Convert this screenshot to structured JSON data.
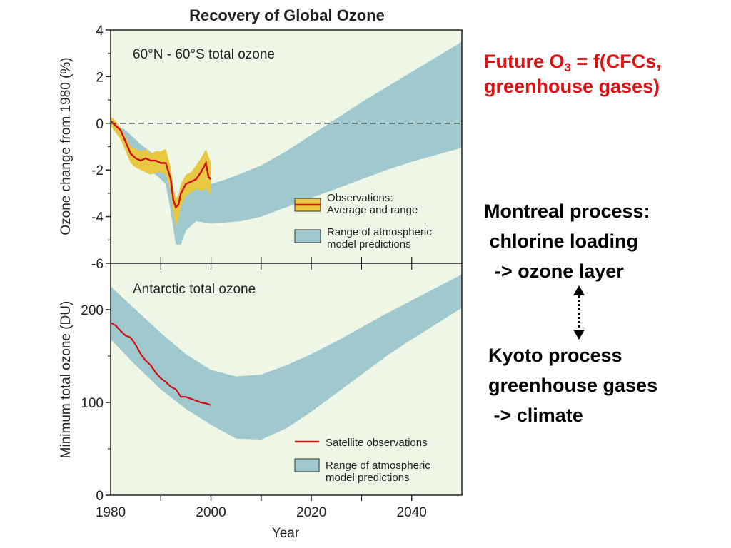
{
  "chart_data": [
    {
      "type": "area",
      "title": "Recovery of Global Ozone",
      "panel_label": "60°N - 60°S total ozone",
      "ylabel": "Ozone change from 1980 (%)",
      "xlim": [
        1980,
        2050
      ],
      "ylim": [
        -6,
        4
      ],
      "yticks": [
        "4",
        "2",
        "0",
        "-2",
        "-4",
        "-6"
      ],
      "reference_line_y": 0,
      "legend_position": "bottom-right",
      "legend": [
        {
          "label": "Observations:\nAverage and range",
          "color": "#e8c840"
        },
        {
          "label": "Range of atmospheric\nmodel predictions",
          "color": "#9fc8cf"
        }
      ],
      "series": [
        {
          "name": "Range of atmospheric model predictions",
          "kind": "band",
          "x": [
            1980,
            1983,
            1986,
            1989,
            1991,
            1992,
            1993,
            1994,
            1995,
            1997,
            2000,
            2003,
            2006,
            2010,
            2015,
            2020,
            2025,
            2030,
            2035,
            2040,
            2045,
            2050
          ],
          "upper": [
            0.1,
            -0.3,
            -0.9,
            -1.4,
            -1.9,
            -2.6,
            -3.4,
            -3.3,
            -3.0,
            -2.8,
            -2.6,
            -2.4,
            -2.15,
            -1.8,
            -1.2,
            -0.5,
            0.2,
            0.9,
            1.55,
            2.2,
            2.85,
            3.5
          ],
          "lower": [
            -0.1,
            -0.8,
            -1.9,
            -2.2,
            -2.6,
            -3.8,
            -5.2,
            -5.2,
            -4.6,
            -4.2,
            -4.3,
            -4.25,
            -4.2,
            -4.0,
            -3.6,
            -3.2,
            -2.8,
            -2.4,
            -2.0,
            -1.65,
            -1.35,
            -1.05
          ]
        },
        {
          "name": "Observations: Average and range",
          "kind": "band",
          "x": [
            1980,
            1981,
            1982,
            1983,
            1984,
            1985,
            1986,
            1987,
            1988,
            1989,
            1990,
            1991,
            1992,
            1992.5,
            1993,
            1993.5,
            1994,
            1995,
            1996,
            1997,
            1998,
            1999,
            2000
          ],
          "upper": [
            0.3,
            0.1,
            -0.2,
            -0.6,
            -1.0,
            -1.1,
            -1.2,
            -1.1,
            -1.3,
            -1.2,
            -1.2,
            -1.1,
            -1.9,
            -2.8,
            -3.2,
            -3.1,
            -2.6,
            -2.2,
            -2.1,
            -1.8,
            -1.5,
            -1.1,
            -1.7
          ],
          "lower": [
            -0.1,
            -0.4,
            -0.7,
            -1.2,
            -1.7,
            -1.9,
            -2.0,
            -2.1,
            -2.2,
            -2.1,
            -2.1,
            -2.2,
            -2.9,
            -3.9,
            -4.4,
            -4.1,
            -3.6,
            -3.1,
            -3.0,
            -2.8,
            -2.9,
            -2.8,
            -3.1
          ]
        },
        {
          "name": "Observations average",
          "kind": "line",
          "color": "#d01010",
          "x": [
            1980,
            1981,
            1982,
            1983,
            1984,
            1985,
            1986,
            1987,
            1988,
            1989,
            1990,
            1991,
            1992,
            1992.5,
            1993,
            1993.5,
            1994,
            1995,
            1996,
            1997,
            1998,
            1999,
            1999.5,
            2000
          ],
          "y": [
            0.1,
            -0.1,
            -0.3,
            -0.8,
            -1.3,
            -1.5,
            -1.6,
            -1.5,
            -1.6,
            -1.6,
            -1.7,
            -1.7,
            -2.4,
            -3.3,
            -3.6,
            -3.5,
            -3.0,
            -2.6,
            -2.5,
            -2.4,
            -2.1,
            -1.7,
            -2.3,
            -2.4
          ]
        }
      ]
    },
    {
      "type": "area",
      "panel_label": "Antarctic total ozone",
      "ylabel": "Minimum total ozone (DU)",
      "xlabel": "Year",
      "xlim": [
        1980,
        2050
      ],
      "ylim": [
        0,
        250
      ],
      "xticks": [
        "1980",
        "2000",
        "2020",
        "2040"
      ],
      "yticks": [
        "200",
        "100",
        "0"
      ],
      "legend_position": "bottom-right",
      "legend": [
        {
          "label": "Satellite observations",
          "color": "#d01010"
        },
        {
          "label": "Range of atmospheric\nmodel predictions",
          "color": "#9fc8cf"
        }
      ],
      "series": [
        {
          "name": "Range of atmospheric model predictions",
          "kind": "band",
          "x": [
            1980,
            1985,
            1990,
            1995,
            2000,
            2005,
            2010,
            2015,
            2020,
            2025,
            2030,
            2035,
            2040,
            2045,
            2050
          ],
          "upper": [
            225,
            200,
            175,
            152,
            135,
            128,
            130,
            140,
            152,
            166,
            181,
            196,
            210,
            224,
            238
          ],
          "lower": [
            168,
            140,
            114,
            93,
            76,
            61,
            60,
            72,
            90,
            110,
            130,
            150,
            168,
            185,
            202
          ]
        },
        {
          "name": "Satellite observations",
          "kind": "line",
          "color": "#d01010",
          "x": [
            1980,
            1981,
            1982,
            1983,
            1984,
            1985,
            1986,
            1987,
            1988,
            1989,
            1990,
            1991,
            1992,
            1993,
            1994,
            1995,
            1996,
            1997,
            1998,
            1999,
            2000
          ],
          "y": [
            186,
            183,
            177,
            172,
            170,
            162,
            152,
            145,
            140,
            132,
            126,
            122,
            117,
            114,
            106,
            106,
            104,
            102,
            100,
            99,
            97
          ]
        }
      ]
    }
  ],
  "side_text": {
    "future_prefix": "Future O",
    "future_sub": "3",
    "future_suffix": " = f(CFCs,\ngreenhouse gases)",
    "montreal": "Montreal process:\n chlorine loading\n  -> ozone layer",
    "kyoto": "Kyoto process\ngreenhouse gases\n -> climate"
  },
  "colors": {
    "background": "#eef6e6",
    "model_band": "#9fc8cf",
    "obs_band": "#e8c840",
    "obs_line": "#d01010",
    "highlight_text": "#e01010"
  },
  "icons": {
    "connector": "double-arrow-dotted-vertical-icon"
  }
}
